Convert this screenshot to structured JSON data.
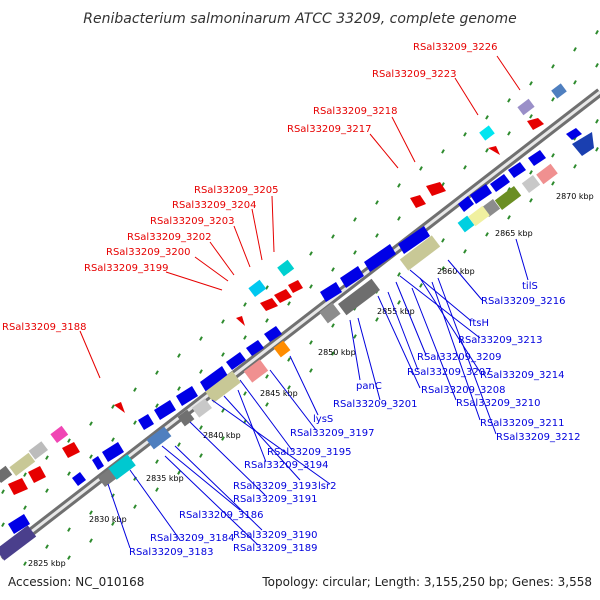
{
  "title": "Renibacterium salmoninarum ATCC 33209, complete genome",
  "footer": {
    "accession": "Accession: NC_010168",
    "summary": "Topology: circular; Length: 3,155,250 bp; Genes: 3,558"
  },
  "ticks": [
    {
      "label": "2825 kbp"
    },
    {
      "label": "2830 kbp"
    },
    {
      "label": "2835 kbp"
    },
    {
      "label": "2840 kbp"
    },
    {
      "label": "2845 kbp"
    },
    {
      "label": "2850 kbp"
    },
    {
      "label": "2855 kbp"
    },
    {
      "label": "2860 kbp"
    },
    {
      "label": "2865 kbp"
    },
    {
      "label": "2870 kbp"
    }
  ],
  "labels_top": [
    "RSal33209_3226",
    "RSal33209_3223",
    "RSal33209_3218",
    "RSal33209_3217",
    "RSal33209_3205",
    "RSal33209_3204",
    "RSal33209_3203",
    "RSal33209_3202",
    "RSal33209_3200",
    "RSal33209_3199",
    "RSal33209_3188"
  ],
  "labels_bottom": [
    "tilS",
    "RSal33209_3216",
    "ftsH",
    "RSal33209_3213",
    "RSal33209_3209",
    "RSal33209_3214",
    "RSal33209_3207",
    "RSal33209_3208",
    "RSal33209_3210",
    "RSal33209_3211",
    "RSal33209_3212",
    "panC",
    "RSal33209_3201",
    "lysS",
    "RSal33209_3197",
    "RSal33209_3195",
    "RSal33209_3194",
    "RSal33209_3193",
    "lsr2",
    "RSal33209_3191",
    "RSal33209_3186",
    "RSal33209_3184",
    "RSal33209_3190",
    "RSal33209_3183",
    "RSal33209_3189"
  ],
  "colors": {
    "backbone": "#888888",
    "dots": "#2e8b2e",
    "forward_gene": "#e60000",
    "reverse_gene": "#0000e6",
    "label_top": "#e60000",
    "label_bottom": "#0000dd"
  }
}
